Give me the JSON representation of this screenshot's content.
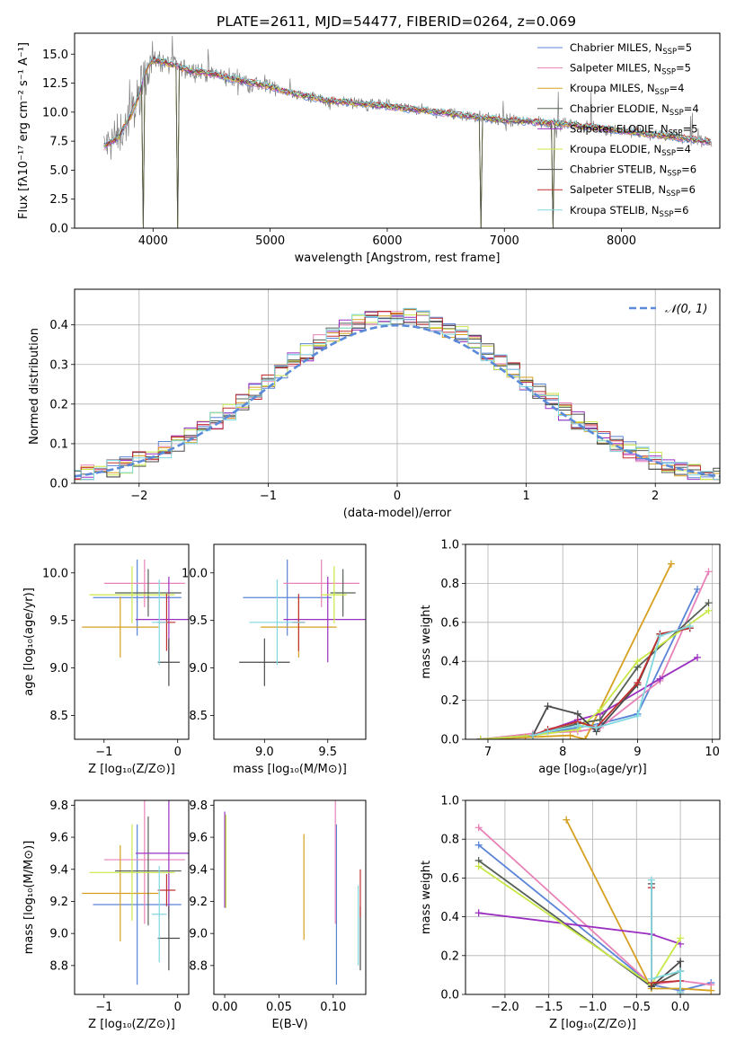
{
  "series_colors": [
    "#5a84d8",
    "#e882b8",
    "#d6a020",
    "#566156",
    "#9b30c0",
    "#c8e848",
    "#4a4a4a",
    "#c03030",
    "#80d8e0"
  ],
  "chart_data": [
    {
      "id": "spectrum",
      "type": "line",
      "title": "PLATE=2611, MJD=54477, FIBERID=0264, z=0.069",
      "xlabel": "wavelength [Angstrom, rest frame]",
      "ylabel": "Flux [fλ10⁻¹⁷ erg cm⁻² s⁻¹ A⁻¹]",
      "xlim": [
        3330,
        8840
      ],
      "ylim": [
        0,
        16.8
      ],
      "xticks": [
        4000,
        5000,
        6000,
        7000,
        8000
      ],
      "yticks": [
        0,
        2.5,
        5.0,
        7.5,
        10.0,
        12.5,
        15.0
      ],
      "ytick_labels": [
        "0.0",
        "2.5",
        "5.0",
        "7.5",
        "10.0",
        "12.5",
        "15.0"
      ],
      "data_color": "#808080",
      "continuum_x": [
        3580,
        3700,
        3800,
        3880,
        3920,
        3960,
        4000,
        4100,
        4300,
        4500,
        4800,
        5000,
        5200,
        5500,
        6000,
        6500,
        7000,
        7500,
        8000,
        8500,
        8770
      ],
      "continuum_y": [
        7.0,
        7.8,
        9.5,
        11.5,
        13.0,
        14.0,
        14.5,
        14.3,
        13.6,
        13.3,
        12.6,
        12.2,
        11.6,
        11.0,
        10.5,
        9.9,
        9.3,
        9.0,
        8.4,
        7.8,
        7.4
      ],
      "legend": [
        {
          "label": "Chabrier MILES, N",
          "sub": "SSP",
          "suffix": "=5"
        },
        {
          "label": "Salpeter MILES, N",
          "sub": "SSP",
          "suffix": "=5"
        },
        {
          "label": "Kroupa MILES, N",
          "sub": "SSP",
          "suffix": "=4"
        },
        {
          "label": "Chabrier ELODIE, N",
          "sub": "SSP",
          "suffix": "=4"
        },
        {
          "label": "Salpeter ELODIE, N",
          "sub": "SSP",
          "suffix": "=5"
        },
        {
          "label": "Kroupa ELODIE, N",
          "sub": "SSP",
          "suffix": "=4"
        },
        {
          "label": "Chabrier STELIB, N",
          "sub": "SSP",
          "suffix": "=6"
        },
        {
          "label": "Salpeter STELIB, N",
          "sub": "SSP",
          "suffix": "=6"
        },
        {
          "label": "Kroupa STELIB, N",
          "sub": "SSP",
          "suffix": "=6"
        }
      ],
      "legend_position": "upper-right"
    },
    {
      "id": "residuals",
      "type": "step",
      "xlabel": "(data-model)/error",
      "ylabel": "Normed distribution",
      "xlim": [
        -2.5,
        2.5
      ],
      "ylim": [
        0,
        0.49
      ],
      "xticks": [
        -2,
        -1,
        0,
        1,
        2
      ],
      "xtick_labels": [
        "−2",
        "−1",
        "0",
        "1",
        "2"
      ],
      "yticks": [
        0,
        0.1,
        0.2,
        0.3,
        0.4
      ],
      "ytick_labels": [
        "0.0",
        "0.1",
        "0.2",
        "0.3",
        "0.4"
      ],
      "grid": true,
      "bin_width": 0.1,
      "gaussian": {
        "label": "𝒩(0, 1)",
        "mean": 0,
        "sigma": 1,
        "color": "#5a8ad8"
      }
    },
    {
      "id": "age-vs-z",
      "type": "errorbar",
      "xlabel": "Z [log₁₀(Z/Z⊙)]",
      "ylabel": "age  [log₁₀(age/yr)]",
      "xlim": [
        -1.4,
        0.15
      ],
      "ylim": [
        8.25,
        10.3
      ],
      "xticks": [
        -1,
        0
      ],
      "xtick_labels": [
        "−1",
        "0"
      ],
      "yticks": [
        8.5,
        9.0,
        9.5,
        10.0
      ],
      "ytick_labels": [
        "8.5",
        "9.0",
        "9.5",
        "10.0"
      ],
      "points": [
        {
          "x": -0.55,
          "xerr": 0.6,
          "y": 9.74,
          "yerr": 0.4
        },
        {
          "x": -0.45,
          "xerr": 0.55,
          "y": 9.89,
          "yerr": 0.25
        },
        {
          "x": -0.78,
          "xerr": 0.52,
          "y": 9.43,
          "yerr": 0.32
        },
        {
          "x": -0.4,
          "xerr": 0.45,
          "y": 9.79,
          "yerr": 0.25
        },
        {
          "x": -0.12,
          "xerr": 0.45,
          "y": 9.51,
          "yerr": 0.45
        },
        {
          "x": -0.62,
          "xerr": 0.58,
          "y": 9.77,
          "yerr": 0.3
        },
        {
          "x": -0.12,
          "xerr": 0.15,
          "y": 9.06,
          "yerr": 0.25
        },
        {
          "x": -0.15,
          "xerr": 0.12,
          "y": 9.48,
          "yerr": 0.3
        },
        {
          "x": -0.25,
          "xerr": 0.1,
          "y": 9.48,
          "yerr": 0.45
        }
      ]
    },
    {
      "id": "age-vs-mass",
      "type": "errorbar",
      "xlabel": "mass [log₁₀(M/M⊙)]",
      "ylabel": "",
      "xlim": [
        8.6,
        9.8
      ],
      "ylim": [
        8.25,
        10.3
      ],
      "xticks": [
        9.0,
        9.5
      ],
      "xtick_labels": [
        "9.0",
        "9.5"
      ],
      "yticks": [
        8.5,
        9.0,
        9.5,
        10.0
      ],
      "ytick_labels": [
        "8.5",
        "9.0",
        "9.5",
        "10.0"
      ],
      "points": [
        {
          "x": 9.18,
          "xerr": 0.35,
          "y": 9.74,
          "yerr": 0.4
        },
        {
          "x": 9.45,
          "xerr": 0.3,
          "y": 9.89,
          "yerr": 0.25
        },
        {
          "x": 9.27,
          "xerr": 0.3,
          "y": 9.43,
          "yerr": 0.32
        },
        {
          "x": 9.62,
          "xerr": 0.1,
          "y": 9.79,
          "yerr": 0.25
        },
        {
          "x": 9.5,
          "xerr": 0.35,
          "y": 9.51,
          "yerr": 0.45
        },
        {
          "x": 9.55,
          "xerr": 0.1,
          "y": 9.77,
          "yerr": 0.3
        },
        {
          "x": 9.0,
          "xerr": 0.2,
          "y": 9.06,
          "yerr": 0.25
        },
        {
          "x": 9.27,
          "xerr": 0.05,
          "y": 9.48,
          "yerr": 0.3
        },
        {
          "x": 9.1,
          "xerr": 0.22,
          "y": 9.48,
          "yerr": 0.45
        }
      ]
    },
    {
      "id": "weight-vs-age",
      "type": "line",
      "xlabel": "age  [log₁₀(age/yr)]",
      "ylabel": "mass weight",
      "xlim": [
        6.7,
        10.1
      ],
      "ylim": [
        0,
        1.0
      ],
      "xticks": [
        7,
        8,
        9,
        10
      ],
      "xtick_labels": [
        "7",
        "8",
        "9",
        "10"
      ],
      "yticks": [
        0,
        0.2,
        0.4,
        0.6,
        0.8,
        1.0
      ],
      "ytick_labels": [
        "0.0",
        "0.2",
        "0.4",
        "0.6",
        "0.8",
        "1.0"
      ],
      "grid": true,
      "series": [
        {
          "x": [
            6.9,
            7.6,
            8.2,
            8.5,
            9.0,
            9.8
          ],
          "y": [
            0.0,
            0.02,
            0.06,
            0.08,
            0.13,
            0.77
          ]
        },
        {
          "x": [
            6.9,
            7.6,
            8.2,
            8.5,
            9.3,
            9.95
          ],
          "y": [
            0.0,
            0.03,
            0.04,
            0.06,
            0.3,
            0.86
          ]
        },
        {
          "x": [
            6.9,
            7.5,
            8.1,
            8.3,
            9.45
          ],
          "y": [
            0.0,
            0.01,
            0.02,
            0.0,
            0.9
          ]
        },
        {
          "x": [
            6.9,
            7.6,
            8.2,
            8.5,
            9.0,
            9.95
          ],
          "y": [
            0.0,
            0.02,
            0.08,
            0.1,
            0.37,
            0.7
          ]
        },
        {
          "x": [
            6.9,
            7.6,
            8.2,
            8.5,
            9.3,
            9.8
          ],
          "y": [
            0.0,
            0.02,
            0.1,
            0.13,
            0.31,
            0.42
          ]
        },
        {
          "x": [
            6.9,
            7.6,
            8.2,
            8.5,
            9.0,
            9.95
          ],
          "y": [
            0.0,
            0.02,
            0.05,
            0.15,
            0.4,
            0.66
          ]
        },
        {
          "x": [
            7.6,
            7.8,
            8.2,
            8.45,
            9.0,
            9.3,
            9.7
          ],
          "y": [
            0.02,
            0.17,
            0.13,
            0.04,
            0.28,
            0.54,
            0.57
          ]
        },
        {
          "x": [
            7.6,
            7.8,
            8.2,
            8.45,
            9.0,
            9.3,
            9.7
          ],
          "y": [
            0.02,
            0.05,
            0.09,
            0.06,
            0.29,
            0.54,
            0.57
          ]
        },
        {
          "x": [
            7.6,
            7.8,
            8.2,
            8.45,
            9.0,
            9.3,
            9.7
          ],
          "y": [
            0.02,
            0.04,
            0.07,
            0.06,
            0.12,
            0.53,
            0.58
          ]
        }
      ]
    },
    {
      "id": "mass-vs-z",
      "type": "errorbar",
      "xlabel": "Z [log₁₀(Z/Z⊙)]",
      "ylabel": "mass [log₁₀(M/M⊙)]",
      "xlim": [
        -1.4,
        0.15
      ],
      "ylim": [
        8.62,
        9.83
      ],
      "xticks": [
        -1,
        0
      ],
      "xtick_labels": [
        "−1",
        "0"
      ],
      "yticks": [
        8.8,
        9.0,
        9.2,
        9.4,
        9.6,
        9.8
      ],
      "ytick_labels": [
        "8.8",
        "9.0",
        "9.2",
        "9.4",
        "9.6",
        "9.8"
      ],
      "points": [
        {
          "x": -0.55,
          "xerr": 0.6,
          "y": 9.18,
          "yerr": 0.5
        },
        {
          "x": -0.45,
          "xerr": 0.55,
          "y": 9.46,
          "yerr": 0.4
        },
        {
          "x": -0.78,
          "xerr": 0.52,
          "y": 9.25,
          "yerr": 0.3
        },
        {
          "x": -0.4,
          "xerr": 0.45,
          "y": 9.39,
          "yerr": 0.34
        },
        {
          "x": -0.12,
          "xerr": 0.45,
          "y": 9.5,
          "yerr": 0.4
        },
        {
          "x": -0.62,
          "xerr": 0.58,
          "y": 9.38,
          "yerr": 0.3
        },
        {
          "x": -0.12,
          "xerr": 0.15,
          "y": 8.97,
          "yerr": 0.2
        },
        {
          "x": -0.15,
          "xerr": 0.12,
          "y": 9.27,
          "yerr": 0.1
        },
        {
          "x": -0.25,
          "xerr": 0.1,
          "y": 9.12,
          "yerr": 0.3
        }
      ]
    },
    {
      "id": "mass-vs-ebv",
      "type": "errorbar",
      "xlabel": "E(B-V)",
      "ylabel": "",
      "xlim": [
        -0.01,
        0.13
      ],
      "ylim": [
        8.62,
        9.83
      ],
      "xticks": [
        0,
        0.05,
        0.1
      ],
      "xtick_labels": [
        "0.00",
        "0.05",
        "0.10"
      ],
      "yticks": [
        8.8,
        9.0,
        9.2,
        9.4,
        9.6,
        9.8
      ],
      "ytick_labels": [
        "8.8",
        "9.0",
        "9.2",
        "9.4",
        "9.6",
        "9.8"
      ],
      "points": [
        {
          "x": 0.103,
          "xerr": 0,
          "y": 9.18,
          "yerr": 0.5
        },
        {
          "x": 0.102,
          "xerr": 0,
          "y": 9.46,
          "yerr": 0.4
        },
        {
          "x": 0.073,
          "xerr": 0,
          "y": 9.29,
          "yerr": 0.33
        },
        {
          "x": 0.001,
          "xerr": 0,
          "y": 9.45,
          "yerr": 0.29
        },
        {
          "x": 0.0,
          "xerr": 0,
          "y": 9.46,
          "yerr": 0.3
        },
        {
          "x": 0.001,
          "xerr": 0,
          "y": 9.45,
          "yerr": 0.29
        },
        {
          "x": 0.125,
          "xerr": 0,
          "y": 8.97,
          "yerr": 0.2
        },
        {
          "x": 0.125,
          "xerr": 0,
          "y": 9.25,
          "yerr": 0.15
        },
        {
          "x": 0.123,
          "xerr": 0,
          "y": 9.05,
          "yerr": 0.25
        }
      ]
    },
    {
      "id": "weight-vs-z",
      "type": "line",
      "xlabel": "Z [log₁₀(Z/Z⊙)]",
      "ylabel": "mass weight",
      "xlim": [
        -2.45,
        0.45
      ],
      "ylim": [
        0,
        1.0
      ],
      "xticks": [
        -2.0,
        -1.5,
        -1.0,
        -0.5,
        0.0
      ],
      "xtick_labels": [
        "−2.0",
        "−1.5",
        "−1.0",
        "−0.5",
        "0.0"
      ],
      "yticks": [
        0,
        0.2,
        0.4,
        0.6,
        0.8,
        1.0
      ],
      "ytick_labels": [
        "0.0",
        "0.2",
        "0.4",
        "0.6",
        "0.8",
        "1.0"
      ],
      "grid": true,
      "series": [
        {
          "x": [
            -2.3,
            -0.33,
            0.0,
            0.35
          ],
          "y": [
            0.77,
            0.05,
            0.02,
            0.06
          ]
        },
        {
          "x": [
            -2.3,
            -0.33,
            0.0,
            0.35
          ],
          "y": [
            0.86,
            0.05,
            0.07,
            0.05
          ]
        },
        {
          "x": [
            -1.3,
            -0.33,
            0.0,
            0.35
          ],
          "y": [
            0.9,
            0.03,
            0.03,
            0.02
          ]
        },
        {
          "x": [
            -2.3,
            -0.33,
            0.0
          ],
          "y": [
            0.69,
            0.04,
            0.12
          ]
        },
        {
          "x": [
            -2.3,
            -0.33,
            0.0
          ],
          "y": [
            0.42,
            0.31,
            0.26
          ]
        },
        {
          "x": [
            -2.3,
            -0.33,
            0.0
          ],
          "y": [
            0.66,
            0.05,
            0.29
          ]
        },
        {
          "x": [
            -0.33,
            -0.33,
            0.0,
            0.0
          ],
          "y": [
            0.57,
            0.04,
            0.17,
            0.0
          ]
        },
        {
          "x": [
            -0.33,
            -0.33,
            0.0,
            0.0
          ],
          "y": [
            0.55,
            0.06,
            0.07,
            0.01
          ]
        },
        {
          "x": [
            -0.33,
            -0.33,
            0.0,
            0.0
          ],
          "y": [
            0.59,
            0.08,
            0.12,
            0.01
          ]
        }
      ]
    }
  ]
}
